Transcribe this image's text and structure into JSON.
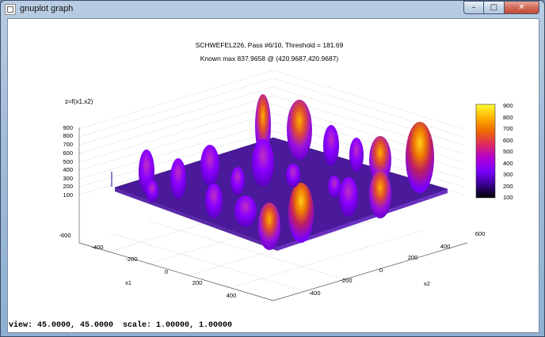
{
  "window": {
    "title": "gnuplot graph",
    "min_icon": "minimize-icon",
    "max_icon": "maximize-icon",
    "close_icon": "close-icon"
  },
  "plot": {
    "title_line1": "SCHWEFEL226, Pass #6/10, Threshold = 181.69",
    "title_line2": "Known max 837.9658 @ (420.9687,420.9687)",
    "zlabel": "z=f(x1,x2)",
    "z_ticks": [
      "900",
      "800",
      "700",
      "600",
      "500",
      "400",
      "300",
      "200",
      "100"
    ],
    "x1_label": "x1",
    "x1_ticks": [
      "-600",
      "-400",
      "-200",
      "0",
      "200",
      "400"
    ],
    "x2_label": "x2",
    "x2_ticks": [
      "-400",
      "-200",
      "0",
      "200",
      "400",
      "600"
    ],
    "colorbar_ticks": [
      "900",
      "800",
      "700",
      "600",
      "500",
      "400",
      "300",
      "200",
      "100"
    ],
    "colorbar_colors": [
      "#000000",
      "#3a0090",
      "#7a00ff",
      "#b300d0",
      "#dd2a60",
      "#ee6a00",
      "#ffb000",
      "#ffff33"
    ]
  },
  "status": {
    "text": "view: 45.0000, 45.0000  scale: 1.00000, 1.00000"
  }
}
